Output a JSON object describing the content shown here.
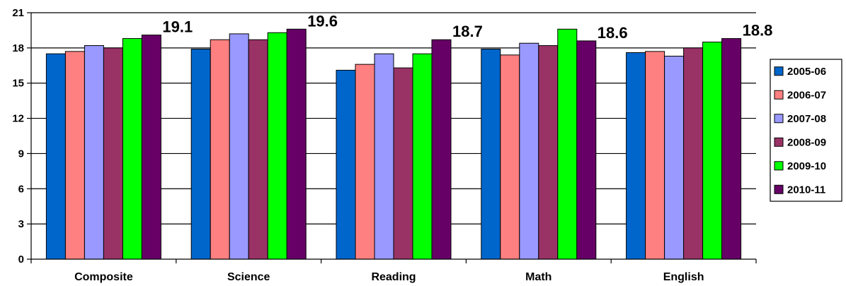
{
  "chart_data": {
    "type": "bar",
    "categories": [
      "Composite",
      "Science",
      "Reading",
      "Math",
      "English"
    ],
    "series": [
      {
        "name": "2005-06",
        "color": "#0066CC",
        "values": [
          17.5,
          17.9,
          16.1,
          17.9,
          17.6
        ]
      },
      {
        "name": "2006-07",
        "color": "#FF8080",
        "values": [
          17.7,
          18.7,
          16.6,
          17.4,
          17.7
        ]
      },
      {
        "name": "2007-08",
        "color": "#9999FF",
        "values": [
          18.2,
          19.2,
          17.5,
          18.4,
          17.3
        ]
      },
      {
        "name": "2008-09",
        "color": "#993366",
        "values": [
          18.0,
          18.7,
          16.3,
          18.2,
          18.0
        ]
      },
      {
        "name": "2009-10",
        "color": "#00FF00",
        "values": [
          18.8,
          19.3,
          17.5,
          19.6,
          18.5
        ]
      },
      {
        "name": "2010-11",
        "color": "#660066",
        "values": [
          19.1,
          19.6,
          18.7,
          18.6,
          18.8
        ]
      }
    ],
    "data_labels": [
      "19.1",
      "19.6",
      "18.7",
      "18.6",
      "18.8"
    ],
    "data_label_series": "2010-11",
    "yticks": [
      "0",
      "3",
      "6",
      "9",
      "12",
      "15",
      "18",
      "21"
    ],
    "ylim": [
      0,
      21
    ],
    "grid": true,
    "legend_position": "right",
    "title": "",
    "xlabel": "",
    "ylabel": ""
  }
}
